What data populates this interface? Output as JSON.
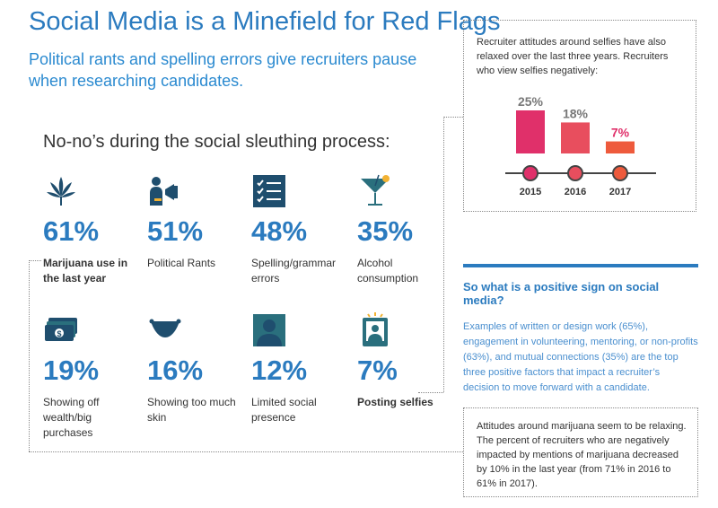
{
  "header": {
    "title": "Social Media is a Minefield for Red Flags",
    "subtitle": "Political rants and spelling errors give recruiters pause when researching candidates."
  },
  "section_heading": "No-no’s during the social sleuthing process:",
  "stats": [
    {
      "icon": "cannabis-leaf-icon",
      "pct": "61%",
      "label": "Marijuana use in the last year",
      "bold": true
    },
    {
      "icon": "megaphone-person-icon",
      "pct": "51%",
      "label": "Political Rants",
      "bold": false
    },
    {
      "icon": "checklist-icon",
      "pct": "48%",
      "label": "Spelling/grammar errors",
      "bold": false
    },
    {
      "icon": "cocktail-glass-icon",
      "pct": "35%",
      "label": "Alcohol consumption",
      "bold": false
    },
    {
      "icon": "money-stack-icon",
      "pct": "19%",
      "label": "Showing off wealth/big purchases",
      "bold": false
    },
    {
      "icon": "bikini-icon",
      "pct": "16%",
      "label": "Showing too much skin",
      "bold": false
    },
    {
      "icon": "person-silhouette-icon",
      "pct": "12%",
      "label": "Limited social presence",
      "bold": false
    },
    {
      "icon": "selfie-photo-icon",
      "pct": "7%",
      "label": "Posting selfies",
      "bold": true
    }
  ],
  "selfie_box": {
    "description": "Recruiter attitudes around selfies have also relaxed over the last three years. Recruiters who view selfies negatively:"
  },
  "chart_data": {
    "type": "bar",
    "categories": [
      "2015",
      "2016",
      "2017"
    ],
    "values": [
      25,
      18,
      7
    ],
    "value_labels": [
      "25%",
      "18%",
      "7%"
    ],
    "ylim": [
      0,
      25
    ],
    "colors": [
      "#e0306a",
      "#e84e5e",
      "#ee5a3c"
    ],
    "label_colors": [
      "#777777",
      "#777777",
      "#e0306a"
    ]
  },
  "positive": {
    "heading": "So what is a positive sign on social media?",
    "body": "Examples of written or design work (65%), engagement in volunteering, mentoring, or non-profits (63%), and mutual connections (35%) are the top three positive factors that impact a recruiter’s decision to move forward with a candidate."
  },
  "marijuana_box": {
    "text": "Attitudes around marijuana seem to be relaxing. The percent of recruiters who are negatively impacted by mentions of marijuana decreased by 10% in the last year (from 71% in 2016 to 61% in 2017)."
  },
  "colors": {
    "accent_blue": "#2b7bbf",
    "icon_dark": "#1f4e6e",
    "icon_teal": "#2a6f7d"
  }
}
